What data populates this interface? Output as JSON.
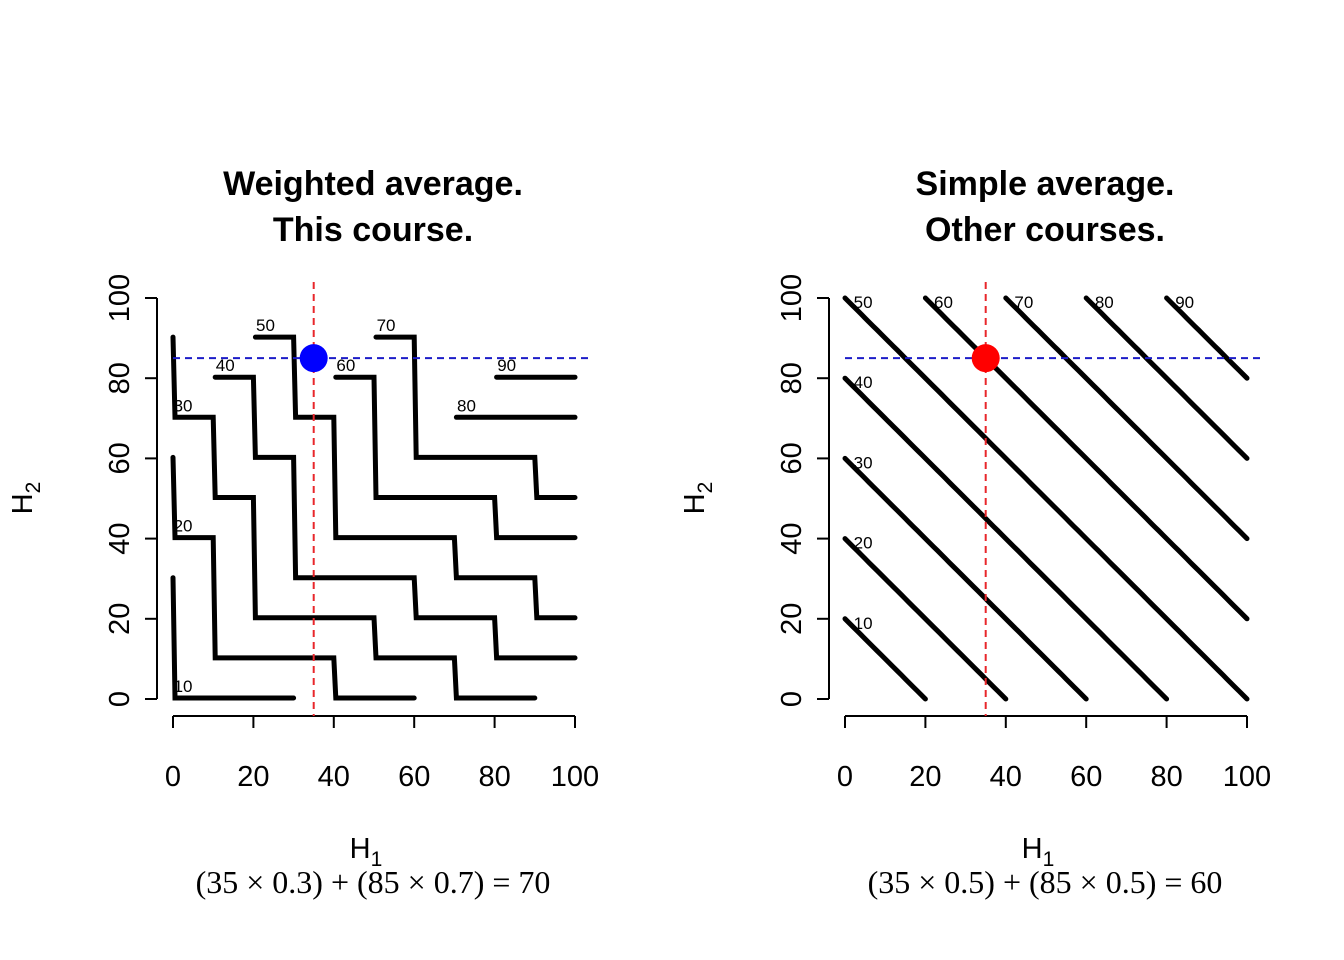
{
  "colors": {
    "contour": "#000000",
    "vline": "#e8262b",
    "hline": "#1c1cc8"
  },
  "chart_data": [
    {
      "type": "contour",
      "title_lines": [
        "Weighted average.",
        "This course."
      ],
      "xlabel": "H",
      "xlabel_sub": "1",
      "ylabel": "H",
      "ylabel_sub": "2",
      "formula": "(35 × 0.3) + (85 × 0.7) = 70",
      "xlim": [
        0,
        100
      ],
      "ylim": [
        0,
        100
      ],
      "xticks": [
        "0",
        "20",
        "40",
        "60",
        "80",
        "100"
      ],
      "yticks": [
        "0",
        "20",
        "40",
        "60",
        "80",
        "100"
      ],
      "weights": [
        0.3,
        0.7
      ],
      "contour_levels": [
        10,
        20,
        30,
        40,
        50,
        60,
        70,
        80,
        90
      ],
      "contour_labels": [
        "10",
        "20",
        "30",
        "40",
        "50",
        "60",
        "70",
        "80",
        "90"
      ],
      "point": {
        "x": 35,
        "y": 85,
        "color": "#0000ff"
      },
      "vline_x": 35,
      "hline_y": 85
    },
    {
      "type": "contour",
      "title_lines": [
        "Simple average.",
        "Other courses."
      ],
      "xlabel": "H",
      "xlabel_sub": "1",
      "ylabel": "H",
      "ylabel_sub": "2",
      "formula": "(35 × 0.5) + (85 × 0.5) = 60",
      "xlim": [
        0,
        100
      ],
      "ylim": [
        0,
        100
      ],
      "xticks": [
        "0",
        "20",
        "40",
        "60",
        "80",
        "100"
      ],
      "yticks": [
        "0",
        "20",
        "40",
        "60",
        "80",
        "100"
      ],
      "weights": [
        0.5,
        0.5
      ],
      "contour_levels": [
        10,
        20,
        30,
        40,
        50,
        60,
        70,
        80,
        90
      ],
      "contour_labels": [
        "10",
        "20",
        "30",
        "40",
        "50",
        "60",
        "70",
        "80",
        "90"
      ],
      "point": {
        "x": 35,
        "y": 85,
        "color": "#ff0000"
      },
      "vline_x": 35,
      "hline_y": 85
    }
  ]
}
